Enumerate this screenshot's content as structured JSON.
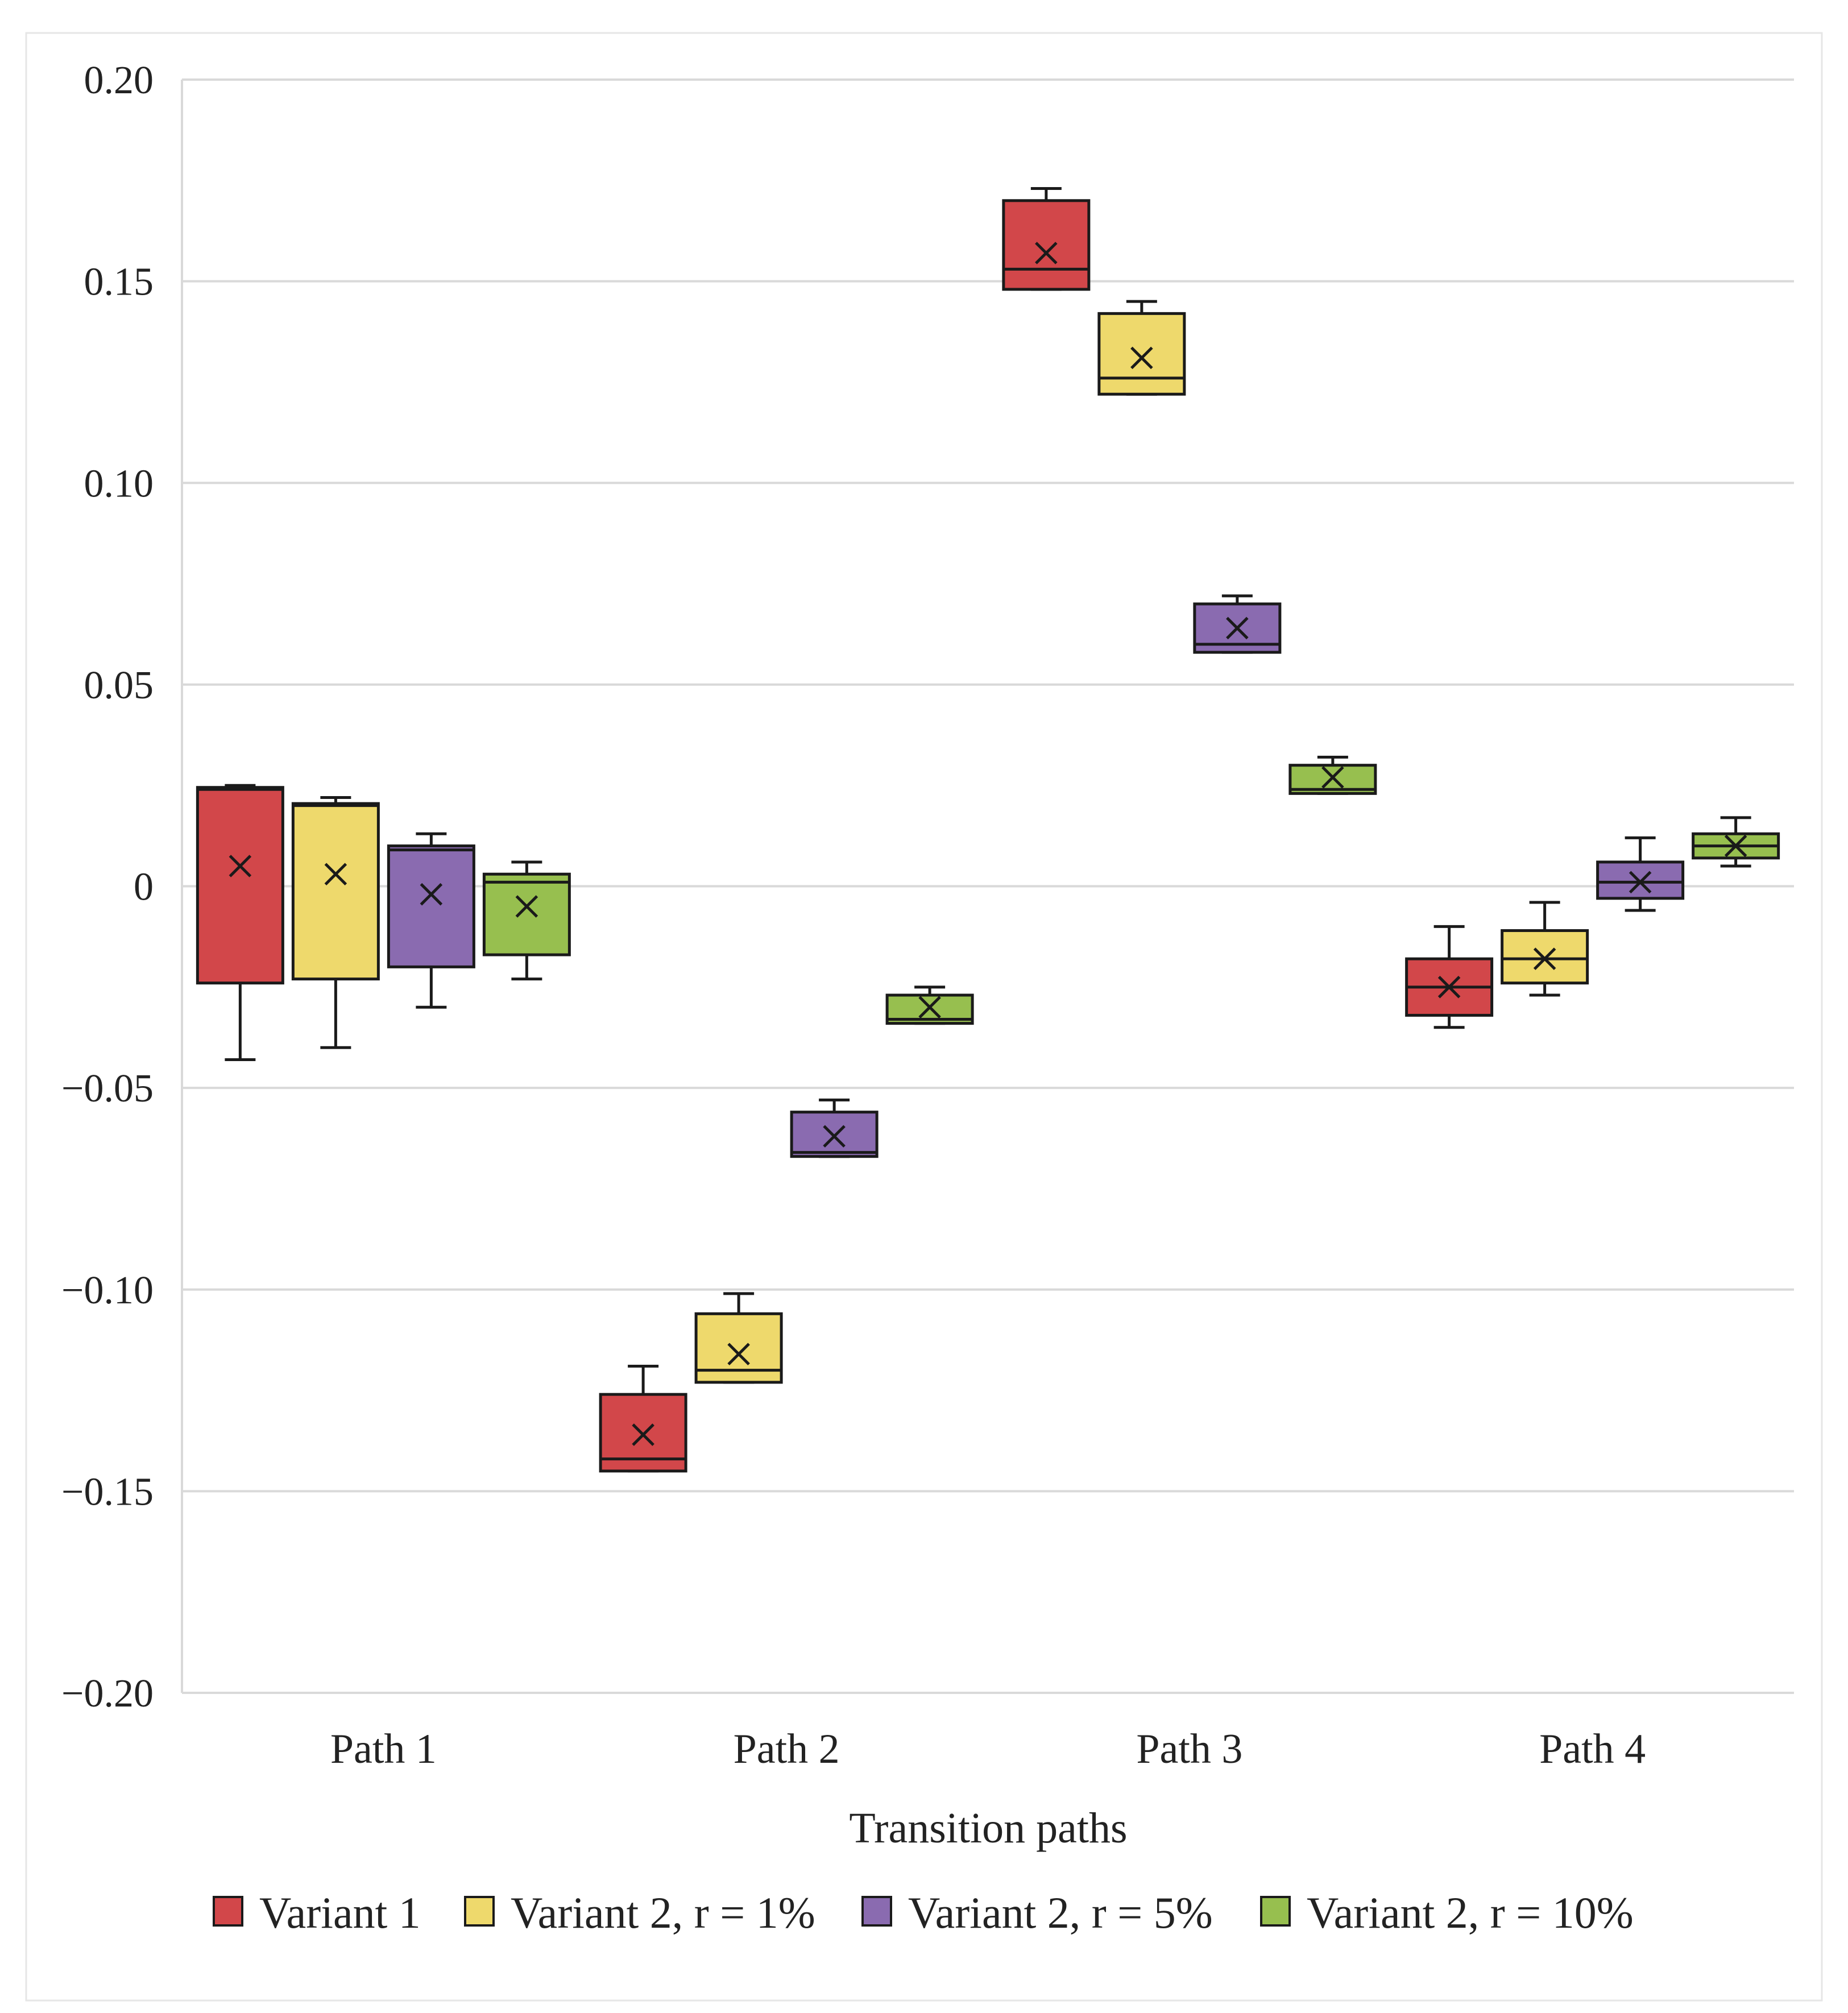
{
  "chart_data": {
    "type": "boxplot",
    "title": "",
    "xlabel": "Transition paths",
    "ylabel": "",
    "ylim": [
      -0.2,
      0.2
    ],
    "yticks": [
      {
        "value": 0.2,
        "label": "0.20"
      },
      {
        "value": 0.15,
        "label": "0.15"
      },
      {
        "value": 0.1,
        "label": "0.10"
      },
      {
        "value": 0.05,
        "label": "0.05"
      },
      {
        "value": 0,
        "label": "0"
      },
      {
        "value": -0.05,
        "label": "−0.05"
      },
      {
        "value": -0.1,
        "label": "−0.10"
      },
      {
        "value": -0.15,
        "label": "−0.15"
      },
      {
        "value": -0.2,
        "label": "−0.20"
      }
    ],
    "grid": true,
    "legend_position": "bottom",
    "categories": [
      "Path 1",
      "Path 2",
      "Path 3",
      "Path 4"
    ],
    "series": [
      {
        "name": "Variant 1",
        "color": "#d2474a",
        "boxes": [
          {
            "min": -0.043,
            "q1": -0.024,
            "median": 0.024,
            "q3": 0.0245,
            "max": 0.025,
            "mean": 0.005
          },
          {
            "min": -0.145,
            "q1": -0.145,
            "median": -0.142,
            "q3": -0.126,
            "max": -0.119,
            "mean": -0.136
          },
          {
            "min": 0.148,
            "q1": 0.148,
            "median": 0.153,
            "q3": 0.17,
            "max": 0.173,
            "mean": 0.157
          },
          {
            "min": -0.035,
            "q1": -0.032,
            "median": -0.025,
            "q3": -0.018,
            "max": -0.01,
            "mean": -0.025
          }
        ]
      },
      {
        "name": "Variant 2, r = 1%",
        "color": "#eed96c",
        "boxes": [
          {
            "min": -0.04,
            "q1": -0.023,
            "median": 0.02,
            "q3": 0.0205,
            "max": 0.022,
            "mean": 0.003
          },
          {
            "min": -0.123,
            "q1": -0.123,
            "median": -0.12,
            "q3": -0.106,
            "max": -0.101,
            "mean": -0.116
          },
          {
            "min": 0.122,
            "q1": 0.122,
            "median": 0.126,
            "q3": 0.142,
            "max": 0.145,
            "mean": 0.131
          },
          {
            "min": -0.027,
            "q1": -0.024,
            "median": -0.018,
            "q3": -0.011,
            "max": -0.004,
            "mean": -0.018
          }
        ]
      },
      {
        "name": "Variant 2, r = 5%",
        "color": "#8a6bb0",
        "boxes": [
          {
            "min": -0.03,
            "q1": -0.02,
            "median": 0.009,
            "q3": 0.01,
            "max": 0.013,
            "mean": -0.002
          },
          {
            "min": -0.067,
            "q1": -0.067,
            "median": -0.066,
            "q3": -0.056,
            "max": -0.053,
            "mean": -0.062
          },
          {
            "min": 0.058,
            "q1": 0.058,
            "median": 0.06,
            "q3": 0.07,
            "max": 0.072,
            "mean": 0.064
          },
          {
            "min": -0.006,
            "q1": -0.003,
            "median": 0.001,
            "q3": 0.006,
            "max": 0.012,
            "mean": 0.001
          }
        ]
      },
      {
        "name": "Variant 2, r = 10%",
        "color": "#97bf4f",
        "boxes": [
          {
            "min": -0.023,
            "q1": -0.017,
            "median": 0.001,
            "q3": 0.003,
            "max": 0.006,
            "mean": -0.005
          },
          {
            "min": -0.034,
            "q1": -0.034,
            "median": -0.033,
            "q3": -0.027,
            "max": -0.025,
            "mean": -0.03
          },
          {
            "min": 0.023,
            "q1": 0.023,
            "median": 0.024,
            "q3": 0.03,
            "max": 0.032,
            "mean": 0.027
          },
          {
            "min": 0.005,
            "q1": 0.007,
            "median": 0.01,
            "q3": 0.013,
            "max": 0.017,
            "mean": 0.01
          }
        ]
      }
    ]
  }
}
